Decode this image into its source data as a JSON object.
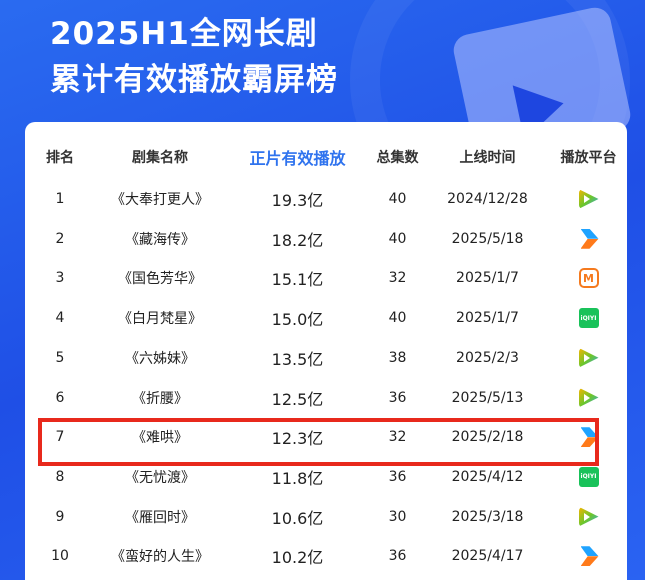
{
  "title_line1": "2025H1全网长剧",
  "title_line2": "累计有效播放霸屏榜",
  "columns": [
    "排名",
    "剧集名称",
    "正片有效播放",
    "总集数",
    "上线时间",
    "播放平台"
  ],
  "accent": "#2f73ee",
  "highlight_color": "#e8291c",
  "highlighted_rank": 7,
  "rows": [
    {
      "rank": "1",
      "name": "《大奉打更人》",
      "plays": "19.3亿",
      "episodes": "40",
      "date": "2024/12/28",
      "platform": "tencent-video-icon"
    },
    {
      "rank": "2",
      "name": "《藏海传》",
      "plays": "18.2亿",
      "episodes": "40",
      "date": "2025/5/18",
      "platform": "youku-icon"
    },
    {
      "rank": "3",
      "name": "《国色芳华》",
      "plays": "15.1亿",
      "episodes": "32",
      "date": "2025/1/7",
      "platform": "mango-tv-icon"
    },
    {
      "rank": "4",
      "name": "《白月梵星》",
      "plays": "15.0亿",
      "episodes": "40",
      "date": "2025/1/7",
      "platform": "iqiyi-icon"
    },
    {
      "rank": "5",
      "name": "《六姊妹》",
      "plays": "13.5亿",
      "episodes": "38",
      "date": "2025/2/3",
      "platform": "tencent-video-icon"
    },
    {
      "rank": "6",
      "name": "《折腰》",
      "plays": "12.5亿",
      "episodes": "36",
      "date": "2025/5/13",
      "platform": "tencent-video-icon"
    },
    {
      "rank": "7",
      "name": "《难哄》",
      "plays": "12.3亿",
      "episodes": "32",
      "date": "2025/2/18",
      "platform": "youku-icon"
    },
    {
      "rank": "8",
      "name": "《无忧渡》",
      "plays": "11.8亿",
      "episodes": "36",
      "date": "2025/4/12",
      "platform": "iqiyi-icon"
    },
    {
      "rank": "9",
      "name": "《雁回时》",
      "plays": "10.6亿",
      "episodes": "30",
      "date": "2025/3/18",
      "platform": "tencent-video-icon"
    },
    {
      "rank": "10",
      "name": "《蛮好的人生》",
      "plays": "10.2亿",
      "episodes": "36",
      "date": "2025/4/17",
      "platform": "youku-icon"
    }
  ]
}
